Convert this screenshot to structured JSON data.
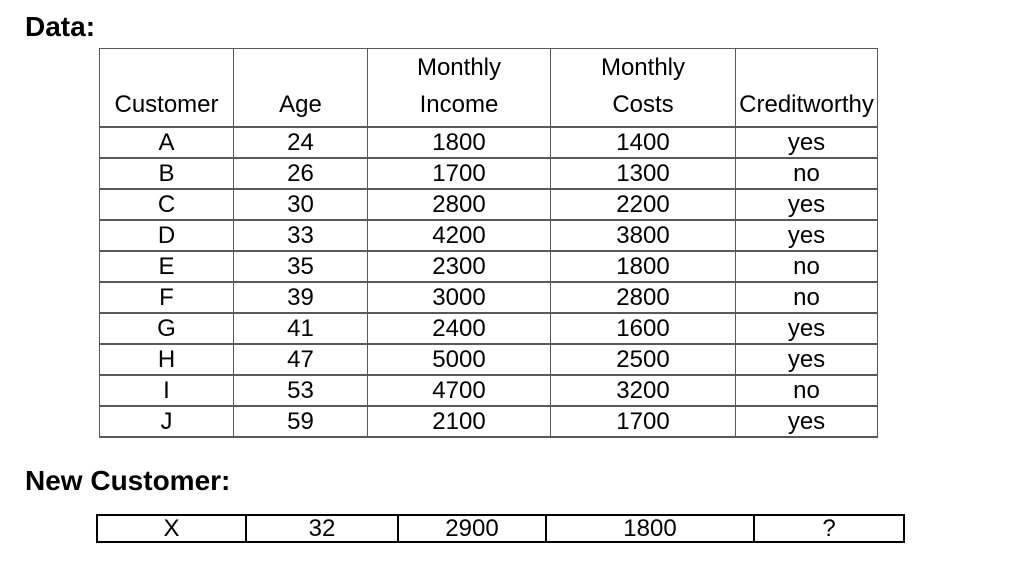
{
  "headings": {
    "data": "Data:",
    "new_customer": "New Customer:"
  },
  "data_table": {
    "column_keys": [
      "customer",
      "age",
      "monthly-income",
      "monthly-costs",
      "creditworthy"
    ],
    "header": [
      {
        "top": "",
        "bottom": "Customer"
      },
      {
        "top": "",
        "bottom": "Age"
      },
      {
        "top": "Monthly",
        "bottom": "Income"
      },
      {
        "top": "Monthly",
        "bottom": "Costs"
      },
      {
        "top": "",
        "bottom": "Creditworthy"
      }
    ],
    "rows": [
      [
        "A",
        "24",
        "1800",
        "1400",
        "yes"
      ],
      [
        "B",
        "26",
        "1700",
        "1300",
        "no"
      ],
      [
        "C",
        "30",
        "2800",
        "2200",
        "yes"
      ],
      [
        "D",
        "33",
        "4200",
        "3800",
        "yes"
      ],
      [
        "E",
        "35",
        "2300",
        "1800",
        "no"
      ],
      [
        "F",
        "39",
        "3000",
        "2800",
        "no"
      ],
      [
        "G",
        "41",
        "2400",
        "1600",
        "yes"
      ],
      [
        "H",
        "47",
        "5000",
        "2500",
        "yes"
      ],
      [
        "I",
        "53",
        "4700",
        "3200",
        "no"
      ],
      [
        "J",
        "59",
        "2100",
        "1700",
        "yes"
      ]
    ]
  },
  "new_customer_table": {
    "row": [
      "X",
      "32",
      "2900",
      "1800",
      "?"
    ]
  },
  "colors": {
    "background": "#ffffff",
    "text": "#000000",
    "data_table_border": "#595959",
    "new_table_border": "#000000"
  }
}
